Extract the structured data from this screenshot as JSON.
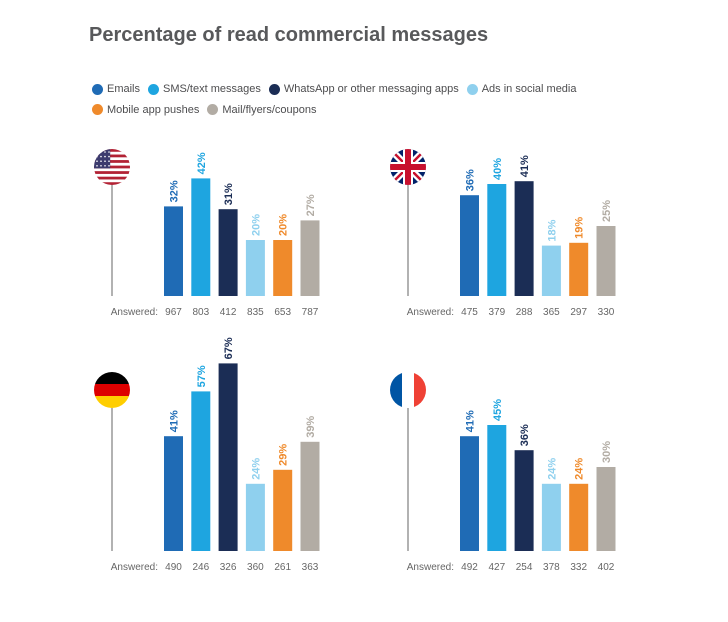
{
  "title": "Percentage of read commercial messages",
  "legend": [
    {
      "label": "Emails",
      "color": "#1f6bb5"
    },
    {
      "label": "SMS/text messages",
      "color": "#1ea5e0"
    },
    {
      "label": "WhatsApp or other messaging apps",
      "color": "#1b2d55"
    },
    {
      "label": "Ads in social media",
      "color": "#8fd0ee"
    },
    {
      "label": "Mobile app pushes",
      "color": "#ef8a2b"
    },
    {
      "label": "Mail/flyers/coupons",
      "color": "#b2aca4"
    }
  ],
  "answered_label": "Answered:",
  "chart_data": [
    {
      "type": "bar",
      "flag": "flag-usa-icon",
      "categories": [
        "Emails",
        "SMS/text messages",
        "WhatsApp or other messaging apps",
        "Ads in social media",
        "Mobile app pushes",
        "Mail/flyers/coupons"
      ],
      "values": [
        32,
        42,
        31,
        20,
        20,
        27
      ],
      "value_labels": [
        "32%",
        "42%",
        "31%",
        "20%",
        "20%",
        "27%"
      ],
      "answered": [
        "967",
        "803",
        "412",
        "835",
        "653",
        "787"
      ]
    },
    {
      "type": "bar",
      "flag": "flag-uk-icon",
      "categories": [
        "Emails",
        "SMS/text messages",
        "WhatsApp or other messaging apps",
        "Ads in social media",
        "Mobile app pushes",
        "Mail/flyers/coupons"
      ],
      "values": [
        36,
        40,
        41,
        18,
        19,
        25
      ],
      "value_labels": [
        "36%",
        "40%",
        "41%",
        "18%",
        "19%",
        "25%"
      ],
      "answered": [
        "475",
        "379",
        "288",
        "365",
        "297",
        "330"
      ]
    },
    {
      "type": "bar",
      "flag": "flag-germany-icon",
      "categories": [
        "Emails",
        "SMS/text messages",
        "WhatsApp or other messaging apps",
        "Ads in social media",
        "Mobile app pushes",
        "Mail/flyers/coupons"
      ],
      "values": [
        41,
        57,
        67,
        24,
        29,
        39
      ],
      "value_labels": [
        "41%",
        "57%",
        "67%",
        "24%",
        "29%",
        "39%"
      ],
      "answered": [
        "490",
        "246",
        "326",
        "360",
        "261",
        "363"
      ]
    },
    {
      "type": "bar",
      "flag": "flag-france-icon",
      "categories": [
        "Emails",
        "SMS/text messages",
        "WhatsApp or other messaging apps",
        "Ads in social media",
        "Mobile app pushes",
        "Mail/flyers/coupons"
      ],
      "values": [
        41,
        45,
        36,
        24,
        24,
        30
      ],
      "value_labels": [
        "41%",
        "45%",
        "36%",
        "24%",
        "24%",
        "30%"
      ],
      "answered": [
        "492",
        "427",
        "254",
        "378",
        "332",
        "402"
      ]
    }
  ]
}
